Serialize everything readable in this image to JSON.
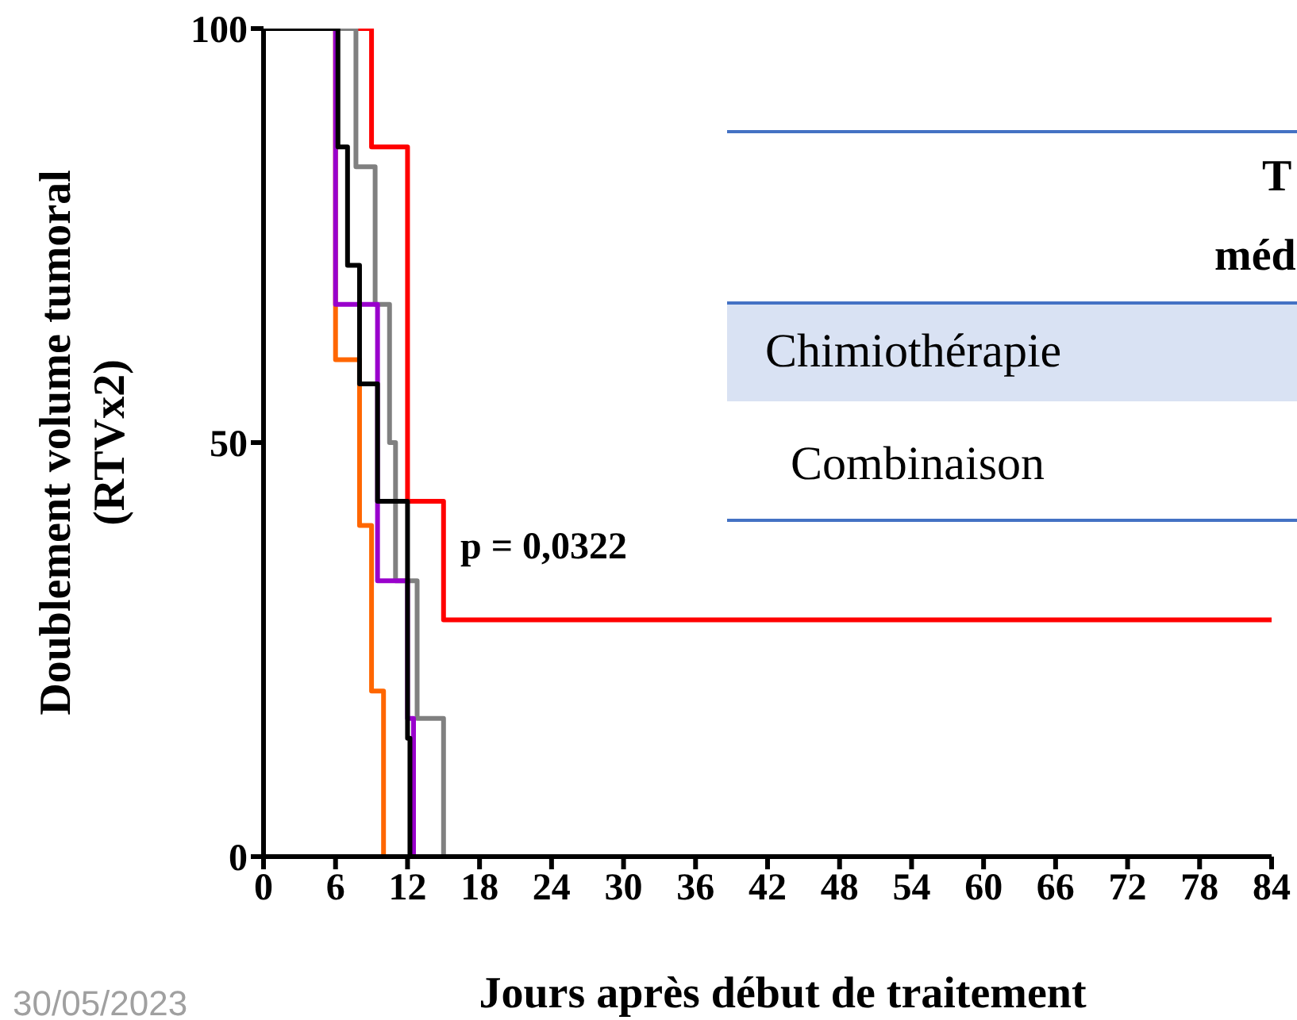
{
  "chart_data": {
    "type": "step",
    "xlabel": "Jours après début de traitement",
    "ylabel": "Doublement volume tumoral\n(RTVx2)",
    "xlim": [
      0,
      84
    ],
    "xticks": [
      0,
      6,
      12,
      18,
      24,
      30,
      36,
      42,
      48,
      54,
      60,
      66,
      72,
      78,
      84
    ],
    "ylim": [
      0,
      100
    ],
    "yticks": [
      0,
      50,
      100
    ],
    "marker": "none",
    "line_style": "solid",
    "series": [
      {
        "color": "#ff0000",
        "x": [
          0,
          9,
          12,
          15,
          84
        ],
        "values": [
          100,
          85.7,
          42.9,
          28.6,
          28.6
        ]
      },
      {
        "color": "#ff6600",
        "x": [
          0,
          6,
          8,
          9,
          10
        ],
        "values": [
          100,
          60,
          40,
          20,
          0
        ]
      },
      {
        "color": "#808080",
        "x": [
          0,
          7.7,
          9.3,
          10.5,
          11,
          12.8,
          15
        ],
        "values": [
          100,
          83.3,
          66.7,
          50,
          33.3,
          16.7,
          0
        ]
      },
      {
        "color": "#9900cc",
        "x": [
          0,
          6,
          9.5,
          12,
          12.5
        ],
        "values": [
          100,
          66.7,
          33.3,
          16.7,
          0
        ]
      },
      {
        "color": "#000000",
        "x": [
          0,
          6.2,
          7,
          8,
          9.5,
          12,
          12.2
        ],
        "values": [
          100,
          85.7,
          71.4,
          57.1,
          42.9,
          14.3,
          0
        ]
      }
    ],
    "annotations": [
      "p = 0,0322",
      "T",
      "méd",
      "Chimiothérapie",
      "Combinaison",
      "30/05/2023"
    ]
  }
}
